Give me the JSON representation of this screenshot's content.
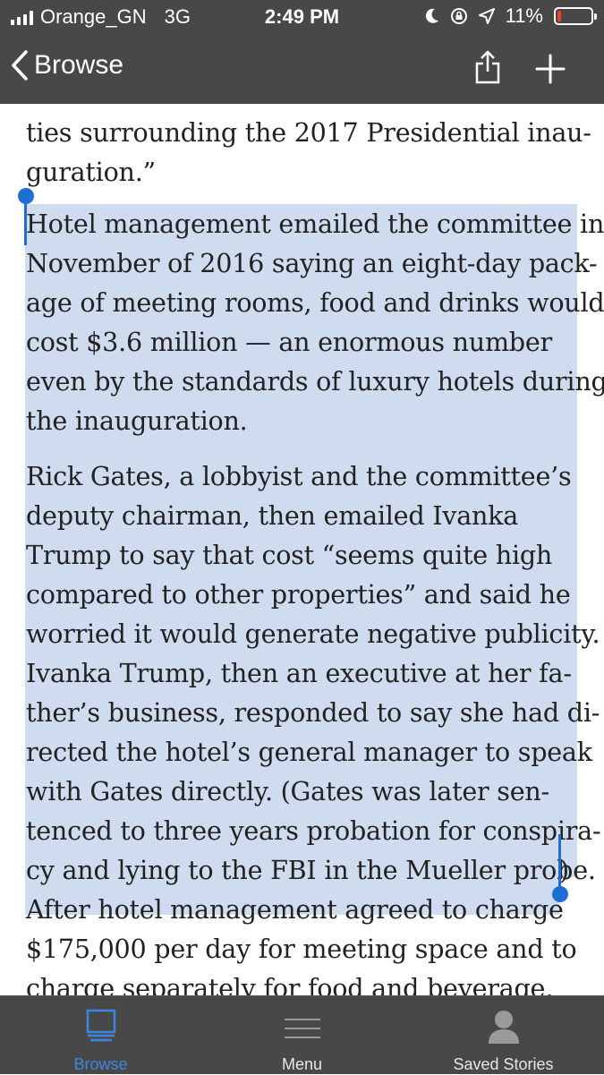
{
  "status": {
    "carrier": "Orange_GN",
    "network": "3G",
    "time": "2:49 PM",
    "battery": "11%",
    "battery_level": 0.11,
    "battery_color": "#ff3b30",
    "icons": [
      "signal-icon",
      "moon-icon",
      "rotation-lock-icon",
      "location-arrow-icon",
      "battery-icon"
    ]
  },
  "nav": {
    "back_label": "Browse",
    "icons": [
      "chevron-left-icon",
      "share-icon",
      "plus-icon"
    ]
  },
  "article": {
    "lines": [
      "ties surrounding the 2017 Presidential inau-",
      "guration.”",
      "Hotel management emailed the committee in",
      "November of 2016 saying an eight-day pack-",
      "age of meeting rooms, food and drinks would",
      "cost $3.6 million — an enormous number",
      "even by the standards of luxury hotels during",
      "the inauguration.",
      "Rick Gates, a lobbyist and the committee’s",
      "deputy chairman, then emailed Ivanka",
      "Trump to say that cost “seems quite high",
      "compared to other properties” and said he",
      "worried it would generate negative publicity.",
      "Ivanka Trump, then an executive at her fa-",
      "ther’s business, responded to say she had di-",
      "rected the hotel’s general manager to speak",
      "with Gates directly.  (Gates was later sen-",
      "tenced to three years probation for conspira-",
      "cy and lying to the FBI in the Mueller probe.",
      ")",
      "After hotel management agreed to charge",
      "$175,000 per day for meeting space and to",
      "charge separately for food and beverage,"
    ],
    "selection_color": "#cfdbee",
    "handle_color": "#1f6ed4"
  },
  "tabs": [
    {
      "label": "Browse",
      "icon": "browse-icon",
      "active": true
    },
    {
      "label": "Menu",
      "icon": "menu-icon",
      "active": false
    },
    {
      "label": "Saved Stories",
      "icon": "person-icon",
      "active": false
    }
  ],
  "colors": {
    "bar_bg": "#484848",
    "active_tab": "#3d86e0",
    "inactive_tab": "#9a9a9a"
  }
}
